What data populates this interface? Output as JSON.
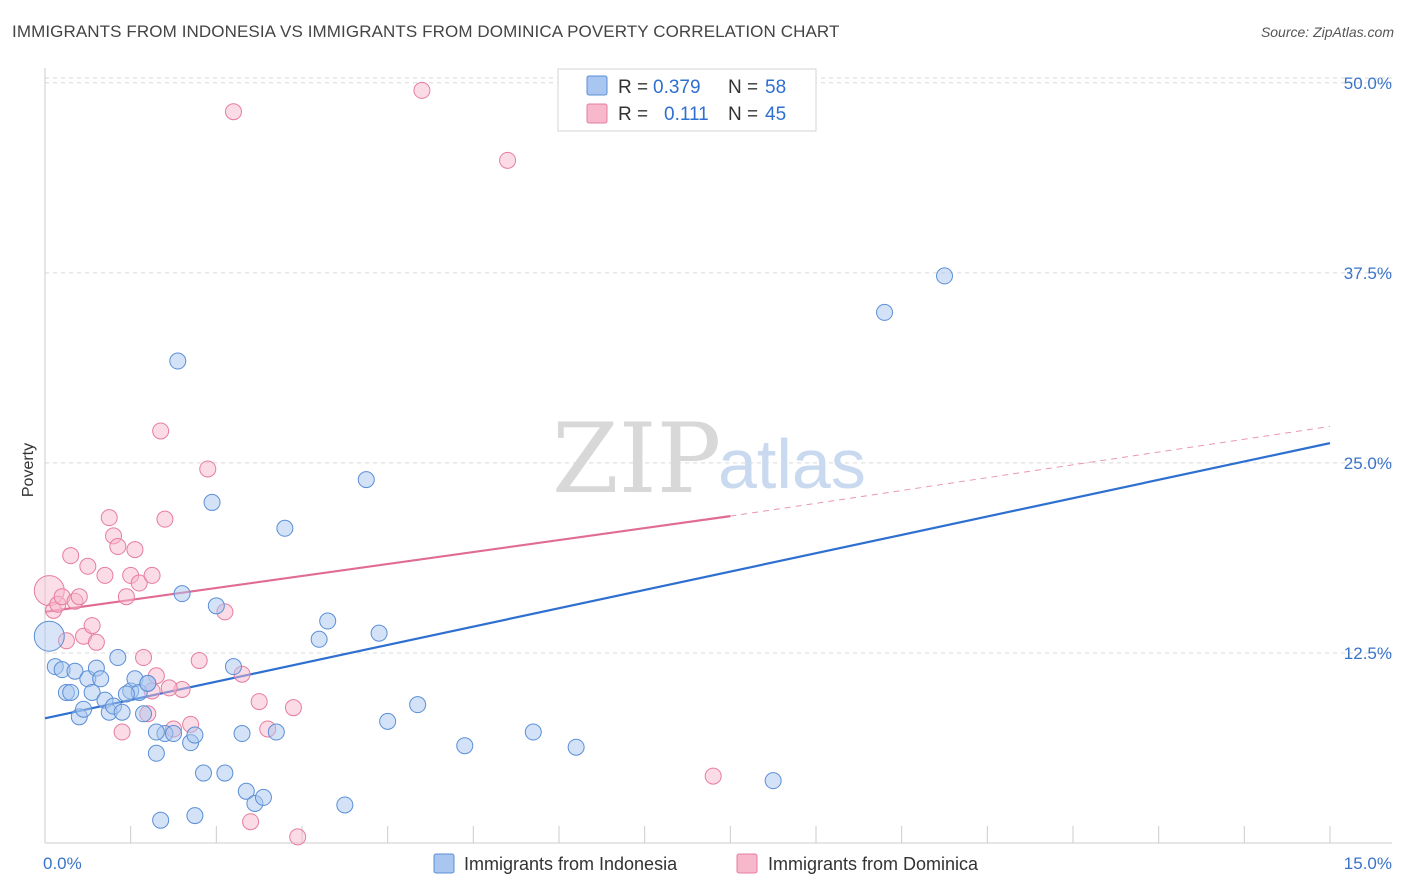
{
  "title": "IMMIGRANTS FROM INDONESIA VS IMMIGRANTS FROM DOMINICA POVERTY CORRELATION CHART",
  "source": "Source: ZipAtlas.com",
  "watermark": {
    "zip": "ZIP",
    "atlas": "atlas"
  },
  "colors": {
    "indonesia_fill": "#a8c6ef",
    "indonesia_stroke": "#5b8fd6",
    "indonesia_line": "#2e6fd0",
    "dominica_fill": "#f7b8cb",
    "dominica_stroke": "#e77d9f",
    "dominica_line": "#e06b95",
    "tick": "#3a73c8",
    "grid": "#d9d9d9"
  },
  "legend": {
    "rows": [
      {
        "r_label": "R =",
        "r_value": "0.379",
        "n_label": "N =",
        "n_value": "58"
      },
      {
        "r_label": "R =",
        "r_value": "0.111",
        "n_label": "N =",
        "n_value": "45"
      }
    ]
  },
  "chart_data": {
    "type": "scatter",
    "title": "IMMIGRANTS FROM INDONESIA VS IMMIGRANTS FROM DOMINICA POVERTY CORRELATION CHART",
    "xlabel": "",
    "ylabel": "Poverty",
    "xlim": [
      0,
      15
    ],
    "ylim": [
      0,
      51.5
    ],
    "x_tick_labels": [
      "0.0%",
      "15.0%"
    ],
    "y_ticks": [
      12.5,
      25.0,
      37.5,
      50.0
    ],
    "y_tick_labels": [
      "12.5%",
      "25.0%",
      "37.5%",
      "50.0%"
    ],
    "grid": true,
    "legend_position": "top-center",
    "series": [
      {
        "name": "Immigrants from Indonesia",
        "R": 0.379,
        "N": 58,
        "trend": {
          "x0": 0,
          "y0": 8.2,
          "x1": 15,
          "y1": 26.3
        },
        "points": [
          [
            0.05,
            13.6
          ],
          [
            0.12,
            11.6
          ],
          [
            0.2,
            11.4
          ],
          [
            0.25,
            9.9
          ],
          [
            0.3,
            9.9
          ],
          [
            0.35,
            11.3
          ],
          [
            0.4,
            8.3
          ],
          [
            0.45,
            8.8
          ],
          [
            0.5,
            10.8
          ],
          [
            0.55,
            9.9
          ],
          [
            0.6,
            11.5
          ],
          [
            0.65,
            10.8
          ],
          [
            0.7,
            9.4
          ],
          [
            0.75,
            8.6
          ],
          [
            0.8,
            9.0
          ],
          [
            0.85,
            12.2
          ],
          [
            0.9,
            8.6
          ],
          [
            1.0,
            10.0
          ],
          [
            1.05,
            10.8
          ],
          [
            1.1,
            9.9
          ],
          [
            1.2,
            10.5
          ],
          [
            1.3,
            5.9
          ],
          [
            1.35,
            1.5
          ],
          [
            1.4,
            7.2
          ],
          [
            1.5,
            7.2
          ],
          [
            1.55,
            31.7
          ],
          [
            1.6,
            16.4
          ],
          [
            1.7,
            6.6
          ],
          [
            1.75,
            1.8
          ],
          [
            1.85,
            4.6
          ],
          [
            1.95,
            22.4
          ],
          [
            2.0,
            15.6
          ],
          [
            2.1,
            4.6
          ],
          [
            2.2,
            11.6
          ],
          [
            2.3,
            7.2
          ],
          [
            2.35,
            3.4
          ],
          [
            2.45,
            2.6
          ],
          [
            2.55,
            3.0
          ],
          [
            2.7,
            7.3
          ],
          [
            2.8,
            20.7
          ],
          [
            3.2,
            13.4
          ],
          [
            3.3,
            14.6
          ],
          [
            3.5,
            2.5
          ],
          [
            3.75,
            23.9
          ],
          [
            3.9,
            13.8
          ],
          [
            4.0,
            8.0
          ],
          [
            4.35,
            9.1
          ],
          [
            4.9,
            6.4
          ],
          [
            5.7,
            7.3
          ],
          [
            6.2,
            6.3
          ],
          [
            8.5,
            4.1
          ],
          [
            9.8,
            34.9
          ],
          [
            10.5,
            37.3
          ],
          [
            1.3,
            7.3
          ],
          [
            1.75,
            7.1
          ],
          [
            1.2,
            10.5
          ],
          [
            0.95,
            9.8
          ],
          [
            1.15,
            8.5
          ]
        ]
      },
      {
        "name": "Immigrants from Dominica",
        "R": 0.111,
        "N": 45,
        "trend": {
          "x0": 0,
          "y0": 15.2,
          "x1": 8.0,
          "y1": 21.5,
          "dash_x1": 15,
          "dash_y1": 27.4
        },
        "points": [
          [
            0.05,
            16.6
          ],
          [
            0.1,
            15.3
          ],
          [
            0.15,
            15.7
          ],
          [
            0.2,
            16.2
          ],
          [
            0.25,
            13.3
          ],
          [
            0.3,
            18.9
          ],
          [
            0.35,
            15.9
          ],
          [
            0.4,
            16.2
          ],
          [
            0.45,
            13.6
          ],
          [
            0.5,
            18.2
          ],
          [
            0.55,
            14.3
          ],
          [
            0.6,
            13.2
          ],
          [
            0.7,
            17.6
          ],
          [
            0.75,
            21.4
          ],
          [
            0.8,
            20.2
          ],
          [
            0.85,
            19.5
          ],
          [
            0.9,
            7.3
          ],
          [
            0.95,
            16.2
          ],
          [
            1.0,
            17.6
          ],
          [
            1.05,
            19.3
          ],
          [
            1.1,
            17.1
          ],
          [
            1.15,
            12.2
          ],
          [
            1.2,
            8.5
          ],
          [
            1.25,
            17.6
          ],
          [
            1.3,
            11.0
          ],
          [
            1.35,
            27.1
          ],
          [
            1.4,
            21.3
          ],
          [
            1.5,
            7.5
          ],
          [
            1.6,
            10.1
          ],
          [
            1.7,
            7.8
          ],
          [
            1.8,
            12.0
          ],
          [
            1.9,
            24.6
          ],
          [
            2.1,
            15.2
          ],
          [
            2.2,
            48.1
          ],
          [
            2.3,
            11.1
          ],
          [
            2.4,
            1.4
          ],
          [
            2.5,
            9.3
          ],
          [
            2.6,
            7.5
          ],
          [
            2.9,
            8.9
          ],
          [
            2.95,
            0.4
          ],
          [
            4.4,
            49.5
          ],
          [
            5.4,
            44.9
          ],
          [
            7.8,
            4.4
          ],
          [
            1.25,
            10.0
          ],
          [
            1.45,
            10.2
          ]
        ]
      }
    ]
  },
  "bottom_legend": [
    {
      "label": "Immigrants from Indonesia"
    },
    {
      "label": "Immigrants from Dominica"
    }
  ]
}
